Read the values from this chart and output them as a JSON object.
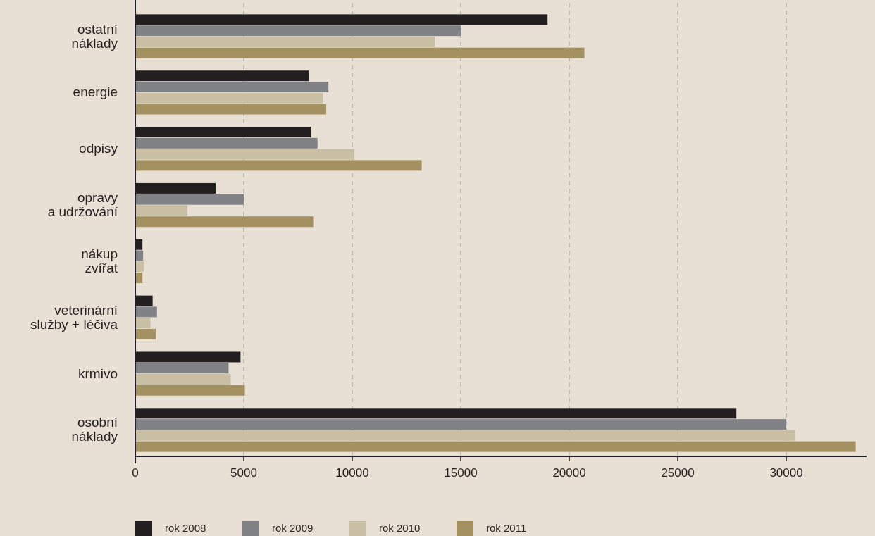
{
  "chart_data": {
    "type": "bar",
    "orientation": "horizontal",
    "categories": [
      "ostatní\nnáklady",
      "energie",
      "odpisy",
      "opravy\na udržování",
      "nákup\nzvířat",
      "veterinární\nslužby + léčiva",
      "krmivo",
      "osobní\nnáklady"
    ],
    "series": [
      {
        "name": "rok 2008",
        "color": "#231f20",
        "values": [
          19000,
          8000,
          8100,
          3700,
          330,
          800,
          4850,
          27700
        ]
      },
      {
        "name": "rok 2009",
        "color": "#808285",
        "values": [
          15000,
          8900,
          8400,
          5000,
          360,
          1000,
          4300,
          30000
        ]
      },
      {
        "name": "rok 2010",
        "color": "#c9bfa5",
        "values": [
          13800,
          8650,
          10100,
          2400,
          400,
          700,
          4400,
          30400
        ]
      },
      {
        "name": "rok 2011",
        "color": "#a39161",
        "values": [
          20700,
          8800,
          13200,
          8200,
          330,
          950,
          5050,
          33200
        ]
      }
    ],
    "xlim": [
      0,
      33700
    ],
    "xticks": [
      0,
      5000,
      10000,
      15000,
      20000,
      25000,
      30000
    ],
    "grid": "x",
    "legend": "bottom left"
  }
}
